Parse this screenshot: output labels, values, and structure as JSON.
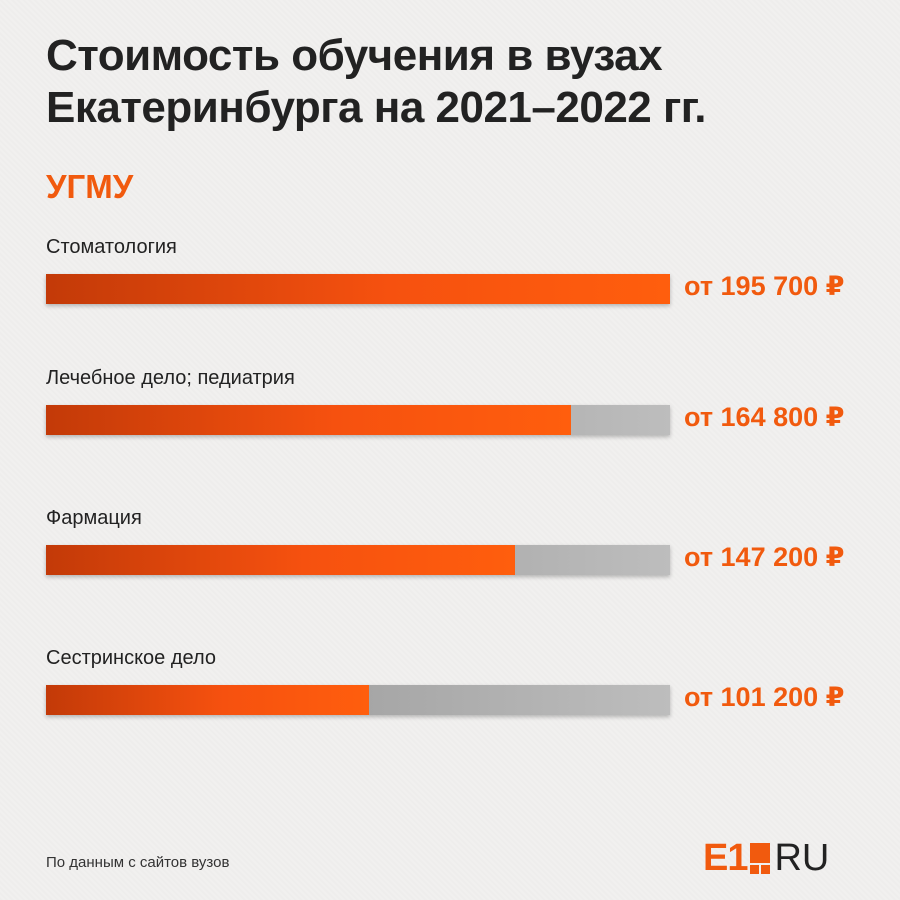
{
  "title_lines": [
    "Стоимость обучения в вузах",
    "Екатеринбурга на 2021–2022 гг."
  ],
  "university": "УГМУ",
  "chart_data": {
    "type": "bar",
    "orientation": "horizontal",
    "title": "Стоимость обучения в вузах Екатеринбурга на 2021–2022 гг.",
    "categories": [
      "Стоматология",
      "Лечебное дело; педиатрия",
      "Фармация",
      "Сестринское дело"
    ],
    "values": [
      195700,
      164800,
      147200,
      101200
    ],
    "value_labels": [
      "от 195 700 ₽",
      "от 164 800 ₽",
      "от 147 200 ₽",
      "от 101 200 ₽"
    ],
    "unit": "₽",
    "xlim": [
      0,
      195700
    ],
    "grid": false,
    "legend": "none"
  },
  "source_note": "По данным с сайтов вузов",
  "logo": {
    "left": "E1",
    "right": "RU"
  },
  "colors": {
    "accent": "#f15a0e",
    "track": "#b5b5b5",
    "text": "#222222",
    "background": "#f1f0ef"
  }
}
